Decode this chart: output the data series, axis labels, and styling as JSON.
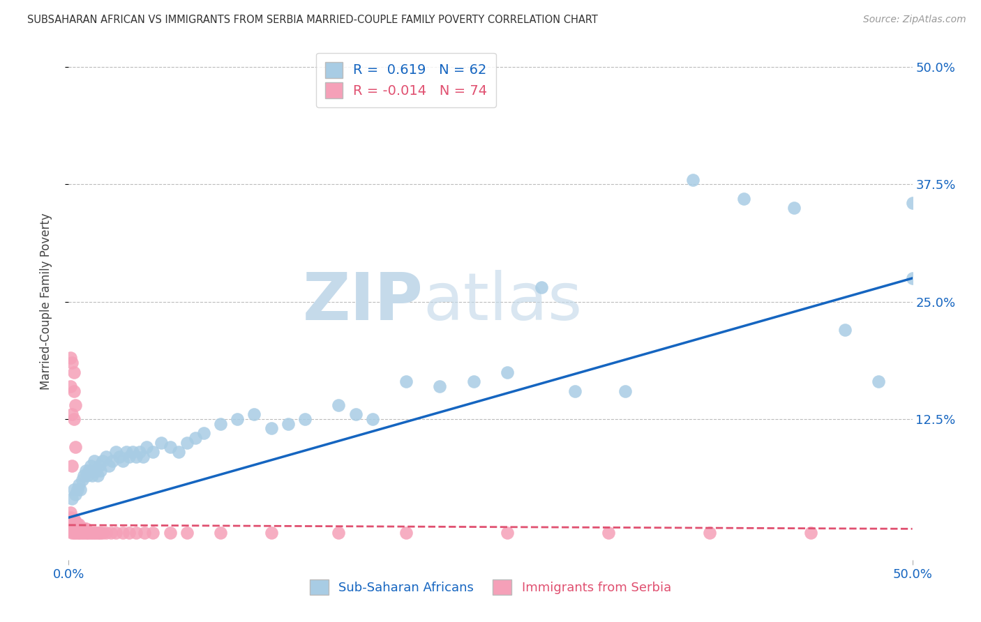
{
  "title": "SUBSAHARAN AFRICAN VS IMMIGRANTS FROM SERBIA MARRIED-COUPLE FAMILY POVERTY CORRELATION CHART",
  "source": "Source: ZipAtlas.com",
  "xlabel_blue": "Sub-Saharan Africans",
  "xlabel_pink": "Immigrants from Serbia",
  "ylabel": "Married-Couple Family Poverty",
  "xmin": 0.0,
  "xmax": 0.5,
  "ymin": -0.025,
  "ymax": 0.525,
  "r_blue": 0.619,
  "n_blue": 62,
  "r_pink": -0.014,
  "n_pink": 74,
  "blue_color": "#a8cce4",
  "blue_line_color": "#1565c0",
  "pink_color": "#f5a0b8",
  "pink_line_color": "#e05070",
  "blue_line_x0": 0.0,
  "blue_line_y0": 0.02,
  "blue_line_x1": 0.5,
  "blue_line_y1": 0.275,
  "pink_line_x0": 0.0,
  "pink_line_y0": 0.012,
  "pink_line_x1": 0.5,
  "pink_line_y1": 0.008,
  "blue_points_x": [
    0.002,
    0.003,
    0.004,
    0.005,
    0.006,
    0.007,
    0.008,
    0.009,
    0.01,
    0.011,
    0.012,
    0.013,
    0.014,
    0.015,
    0.016,
    0.017,
    0.018,
    0.019,
    0.02,
    0.022,
    0.024,
    0.026,
    0.028,
    0.03,
    0.032,
    0.034,
    0.036,
    0.038,
    0.04,
    0.042,
    0.044,
    0.046,
    0.05,
    0.055,
    0.06,
    0.065,
    0.07,
    0.075,
    0.08,
    0.09,
    0.1,
    0.11,
    0.12,
    0.13,
    0.14,
    0.16,
    0.17,
    0.18,
    0.2,
    0.22,
    0.24,
    0.26,
    0.3,
    0.33,
    0.37,
    0.4,
    0.43,
    0.46,
    0.48,
    0.5,
    0.5,
    0.28
  ],
  "blue_points_y": [
    0.04,
    0.05,
    0.045,
    0.05,
    0.055,
    0.05,
    0.06,
    0.065,
    0.07,
    0.065,
    0.07,
    0.075,
    0.065,
    0.08,
    0.07,
    0.065,
    0.075,
    0.07,
    0.08,
    0.085,
    0.075,
    0.08,
    0.09,
    0.085,
    0.08,
    0.09,
    0.085,
    0.09,
    0.085,
    0.09,
    0.085,
    0.095,
    0.09,
    0.1,
    0.095,
    0.09,
    0.1,
    0.105,
    0.11,
    0.12,
    0.125,
    0.13,
    0.115,
    0.12,
    0.125,
    0.14,
    0.13,
    0.125,
    0.165,
    0.16,
    0.165,
    0.175,
    0.155,
    0.155,
    0.38,
    0.36,
    0.35,
    0.22,
    0.165,
    0.355,
    0.275,
    0.265
  ],
  "pink_points_x": [
    0.001,
    0.001,
    0.001,
    0.001,
    0.001,
    0.001,
    0.002,
    0.002,
    0.002,
    0.002,
    0.002,
    0.003,
    0.003,
    0.003,
    0.003,
    0.003,
    0.004,
    0.004,
    0.004,
    0.004,
    0.005,
    0.005,
    0.005,
    0.006,
    0.006,
    0.006,
    0.007,
    0.007,
    0.008,
    0.008,
    0.009,
    0.009,
    0.01,
    0.01,
    0.011,
    0.012,
    0.013,
    0.014,
    0.015,
    0.016,
    0.017,
    0.018,
    0.019,
    0.02,
    0.022,
    0.025,
    0.028,
    0.032,
    0.036,
    0.04,
    0.045,
    0.05,
    0.06,
    0.07,
    0.09,
    0.12,
    0.16,
    0.2,
    0.26,
    0.32,
    0.38,
    0.44,
    0.003,
    0.003,
    0.004,
    0.002,
    0.001,
    0.003,
    0.004,
    0.002,
    0.002,
    0.001
  ],
  "pink_points_y": [
    0.005,
    0.008,
    0.012,
    0.016,
    0.02,
    0.025,
    0.004,
    0.007,
    0.011,
    0.015,
    0.019,
    0.004,
    0.007,
    0.011,
    0.015,
    0.019,
    0.004,
    0.007,
    0.011,
    0.016,
    0.004,
    0.008,
    0.013,
    0.004,
    0.008,
    0.013,
    0.004,
    0.008,
    0.004,
    0.008,
    0.004,
    0.008,
    0.004,
    0.008,
    0.004,
    0.004,
    0.004,
    0.004,
    0.004,
    0.004,
    0.004,
    0.004,
    0.004,
    0.004,
    0.004,
    0.004,
    0.004,
    0.004,
    0.004,
    0.004,
    0.004,
    0.004,
    0.004,
    0.004,
    0.004,
    0.004,
    0.004,
    0.004,
    0.004,
    0.004,
    0.004,
    0.004,
    0.155,
    0.125,
    0.095,
    0.075,
    0.16,
    0.175,
    0.14,
    0.13,
    0.185,
    0.19
  ]
}
